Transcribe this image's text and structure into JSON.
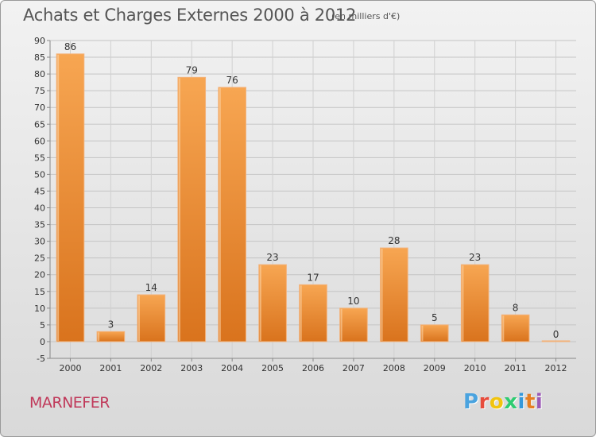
{
  "title": "Achats et Charges Externes 2000 à 2012",
  "subtitle": "(en milliers d'€)",
  "place": "MARNEFER",
  "logo": {
    "text": "Proxiti",
    "colors": [
      "#4aa3df",
      "#e74c3c",
      "#f1c40f",
      "#2ecc71",
      "#3498db",
      "#e67e22",
      "#9b59b6"
    ]
  },
  "colors": {
    "bar": "#f08a2e",
    "bar_light": "#f6b068",
    "title": "#555555",
    "place": "#c0395a"
  },
  "chart_data": {
    "type": "bar",
    "categories": [
      "2000",
      "2001",
      "2002",
      "2003",
      "2004",
      "2005",
      "2006",
      "2007",
      "2008",
      "2009",
      "2010",
      "2011",
      "2012"
    ],
    "values": [
      86,
      3,
      14,
      79,
      76,
      23,
      17,
      10,
      28,
      5,
      23,
      8,
      0
    ],
    "ylim": [
      -5,
      90
    ],
    "yticks": [
      -5,
      0,
      5,
      10,
      15,
      20,
      25,
      30,
      35,
      40,
      45,
      50,
      55,
      60,
      65,
      70,
      75,
      80,
      85,
      90
    ],
    "grid": true,
    "legend": "none"
  }
}
